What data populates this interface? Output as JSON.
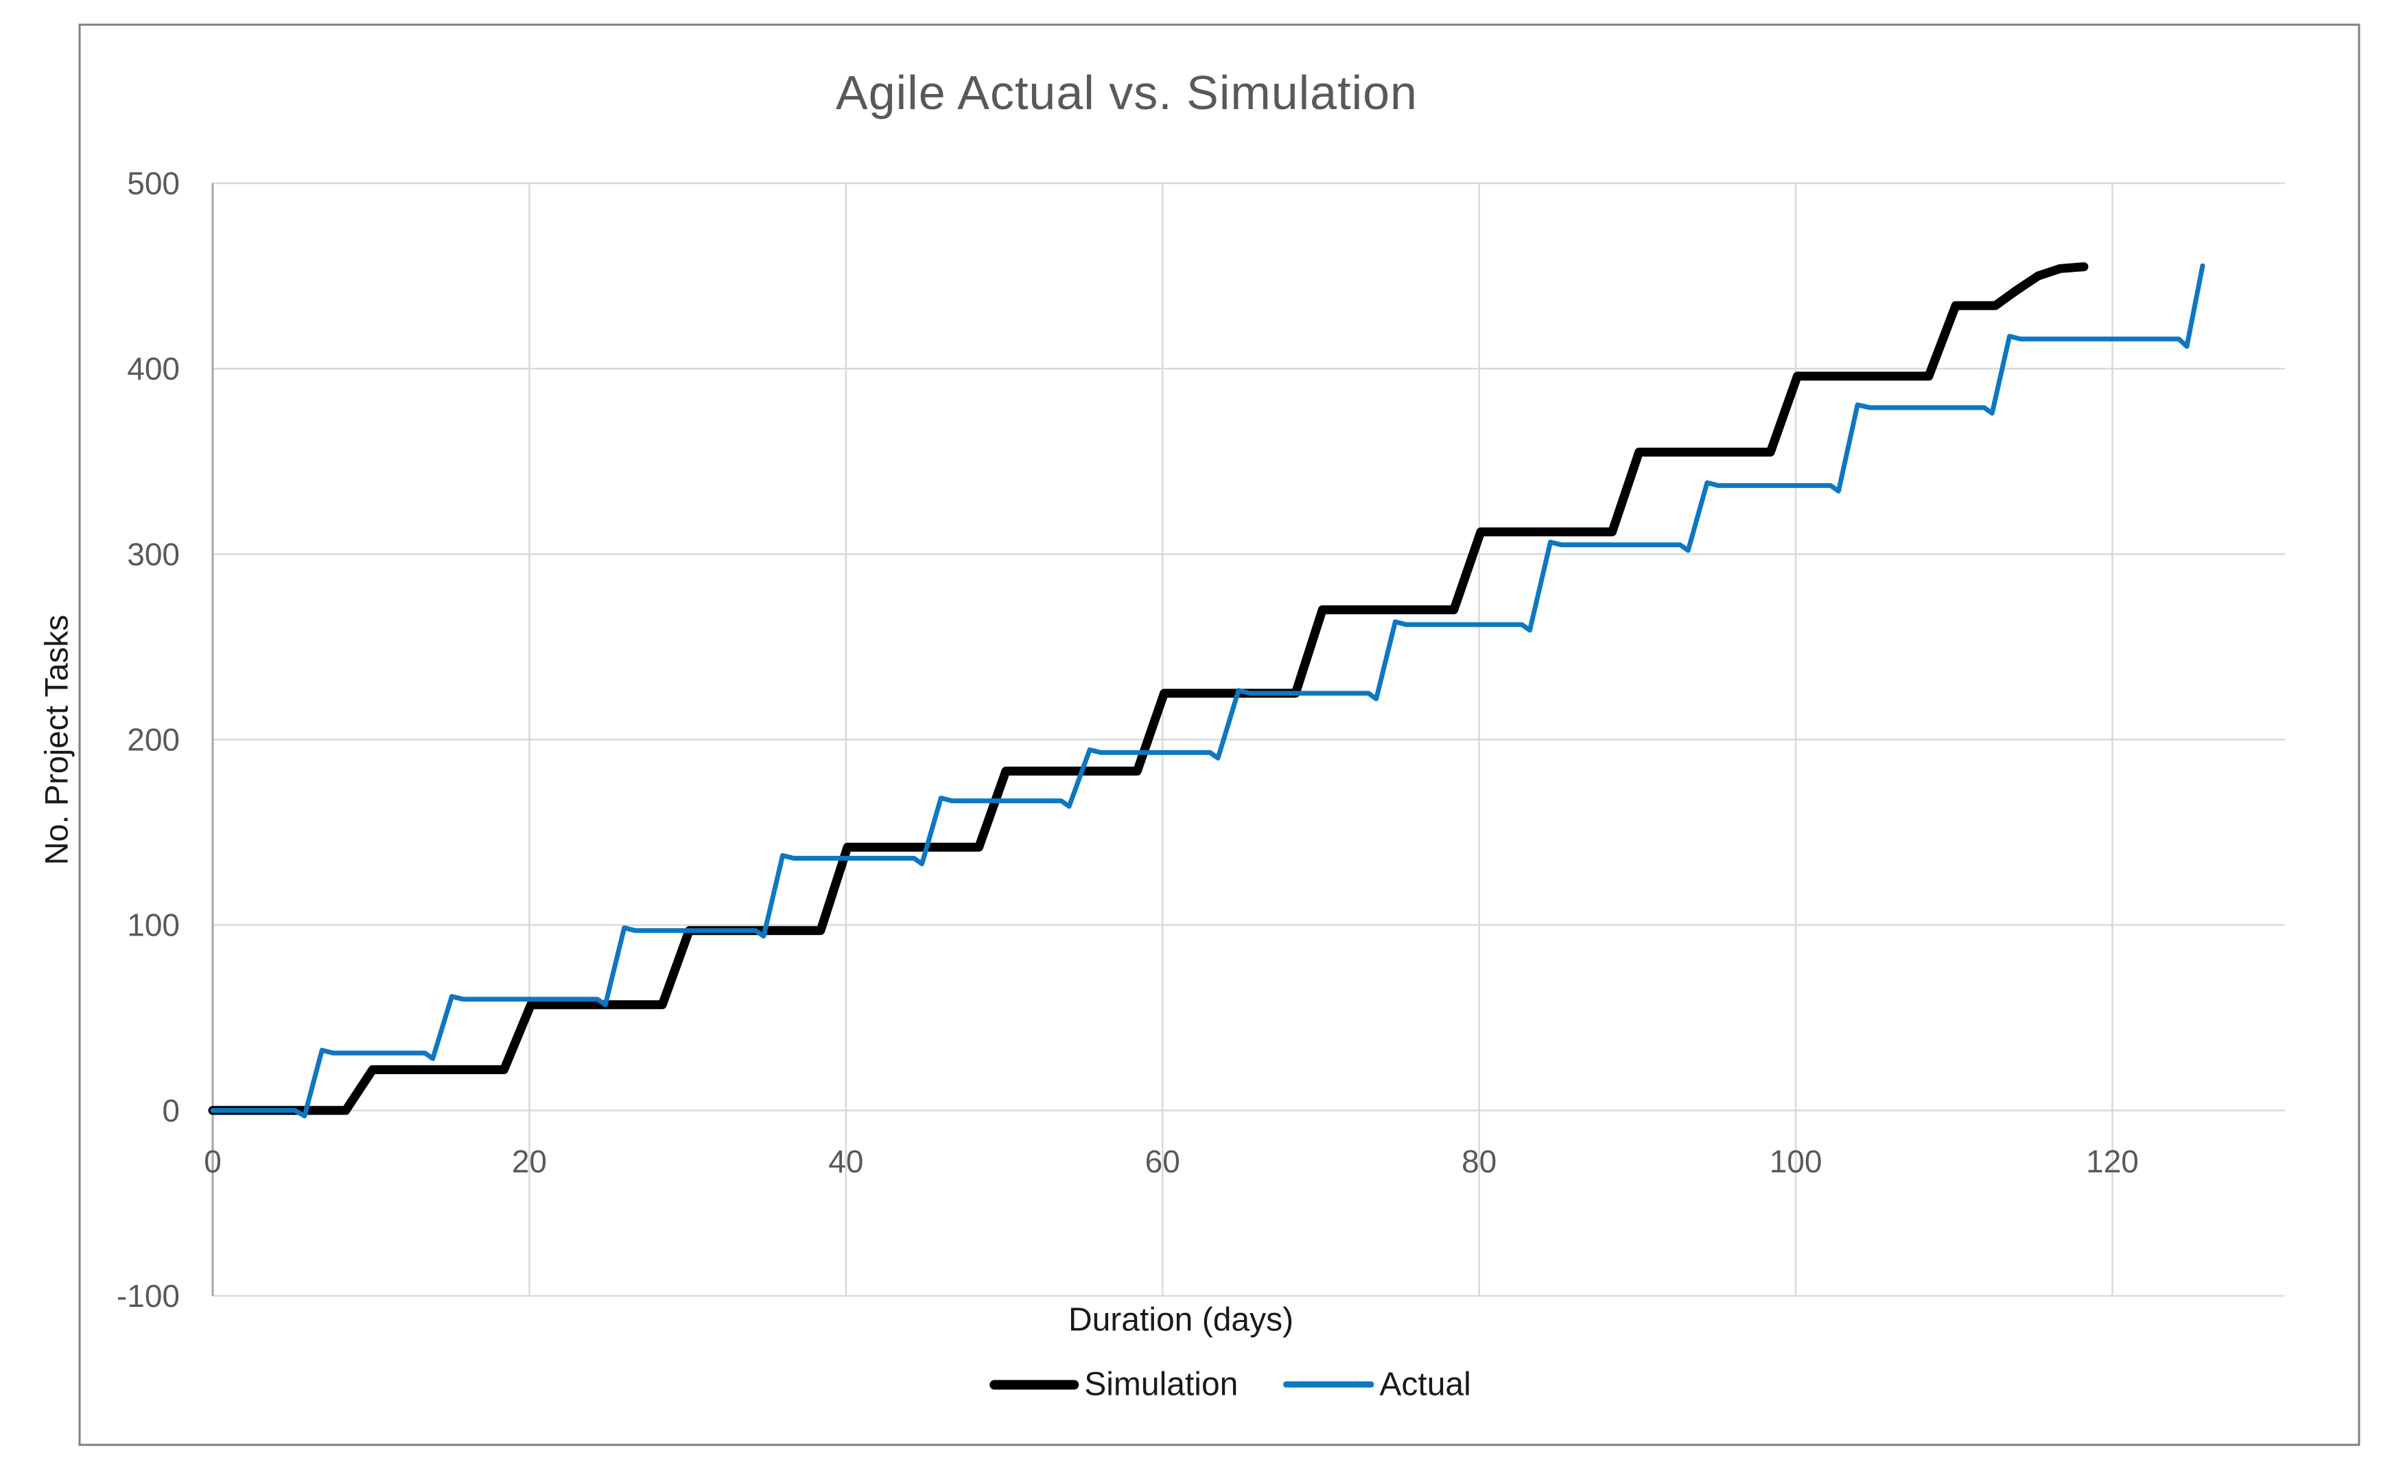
{
  "chart_data": {
    "type": "line",
    "title": "Agile Actual vs. Simulation",
    "xlabel": "Duration (days)",
    "ylabel": "No. Project Tasks",
    "xlim": [
      0,
      130.9
    ],
    "ylim": [
      -100,
      500
    ],
    "x_ticks": [
      0,
      20,
      40,
      60,
      80,
      100,
      120
    ],
    "y_ticks": [
      -100,
      0,
      100,
      200,
      300,
      400,
      500
    ],
    "grid": true,
    "legend_position": "bottom-center",
    "series": [
      {
        "name": "Simulation",
        "color": "#000000",
        "stroke_width": 13,
        "points": [
          [
            0,
            0
          ],
          [
            8.4,
            0
          ],
          [
            10.1,
            22
          ],
          [
            18.4,
            22
          ],
          [
            20.1,
            57
          ],
          [
            28.4,
            57
          ],
          [
            30.1,
            97
          ],
          [
            38.4,
            97
          ],
          [
            40.1,
            142
          ],
          [
            48.4,
            142
          ],
          [
            50.1,
            183
          ],
          [
            58.4,
            183
          ],
          [
            60.1,
            225
          ],
          [
            68.4,
            225
          ],
          [
            70.1,
            270
          ],
          [
            78.4,
            270
          ],
          [
            80.1,
            312
          ],
          [
            88.4,
            312
          ],
          [
            90.1,
            355
          ],
          [
            98.4,
            355
          ],
          [
            100.1,
            396
          ],
          [
            108.4,
            396
          ],
          [
            110.1,
            434
          ],
          [
            112.6,
            434
          ],
          [
            113.9,
            442
          ],
          [
            115.3,
            450
          ],
          [
            116.7,
            454
          ],
          [
            118.2,
            455
          ]
        ]
      },
      {
        "name": "Actual",
        "color": "#0d77c2",
        "stroke_width": 7,
        "points": [
          [
            0,
            0
          ],
          [
            5.2,
            0
          ],
          [
            5.8,
            -3
          ],
          [
            6.9,
            32.5
          ],
          [
            7.6,
            31
          ],
          [
            13.4,
            31
          ],
          [
            13.9,
            28
          ],
          [
            15.1,
            61.5
          ],
          [
            15.8,
            60
          ],
          [
            24.3,
            60
          ],
          [
            24.8,
            57
          ],
          [
            26.0,
            98.5
          ],
          [
            26.7,
            97
          ],
          [
            34.3,
            97
          ],
          [
            34.8,
            94
          ],
          [
            36.0,
            137.5
          ],
          [
            36.7,
            136
          ],
          [
            44.3,
            136
          ],
          [
            44.8,
            133
          ],
          [
            46.0,
            168.5
          ],
          [
            46.7,
            167
          ],
          [
            53.6,
            167
          ],
          [
            54.1,
            164
          ],
          [
            55.4,
            194.5
          ],
          [
            56.1,
            193
          ],
          [
            63.0,
            193
          ],
          [
            63.5,
            190
          ],
          [
            64.8,
            226.5
          ],
          [
            65.5,
            225
          ],
          [
            73.0,
            225
          ],
          [
            73.5,
            222
          ],
          [
            74.7,
            263.5
          ],
          [
            75.4,
            262
          ],
          [
            82.7,
            262
          ],
          [
            83.2,
            259
          ],
          [
            84.5,
            306.5
          ],
          [
            85.2,
            305
          ],
          [
            92.7,
            305
          ],
          [
            93.2,
            302
          ],
          [
            94.4,
            338.5
          ],
          [
            95.1,
            337
          ],
          [
            102.2,
            337
          ],
          [
            102.7,
            334
          ],
          [
            103.9,
            380.5
          ],
          [
            104.7,
            379
          ],
          [
            111.9,
            379
          ],
          [
            112.4,
            376
          ],
          [
            113.5,
            417.5
          ],
          [
            114.2,
            416
          ],
          [
            124.2,
            416
          ],
          [
            124.7,
            412
          ],
          [
            125.7,
            455.5
          ]
        ]
      }
    ]
  },
  "colors": {
    "series_simulation": "#000000",
    "series_actual": "#0d77c2",
    "gridline": "#d9d9d9",
    "axis_line": "#a6a6a6",
    "frame_border": "#7f7f7f",
    "tick_text": "#595959",
    "title_text": "#595959",
    "label_text": "#1a1a1a"
  }
}
